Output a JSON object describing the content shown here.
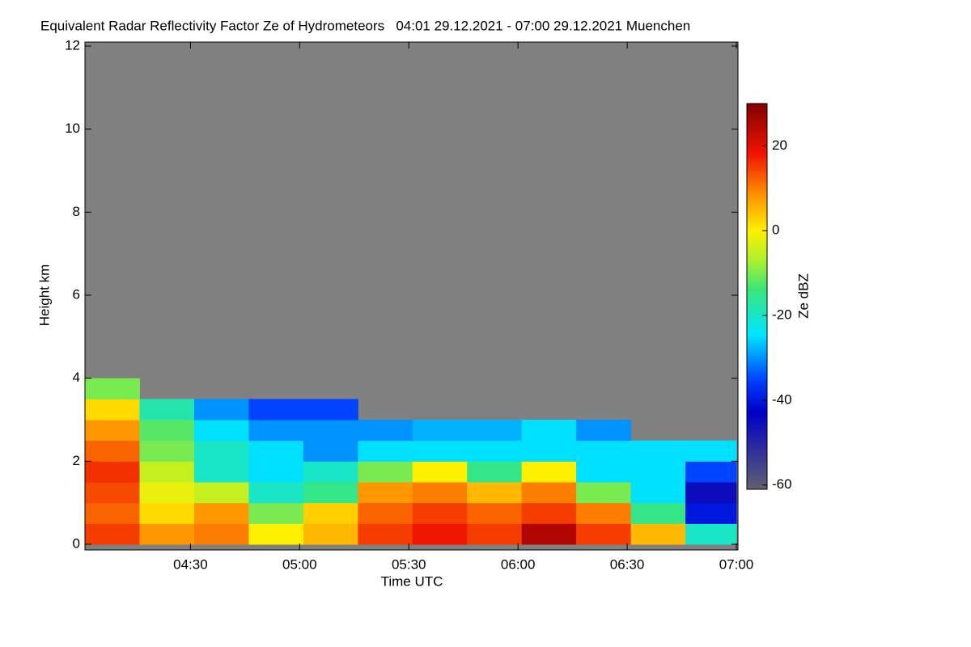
{
  "chart_data": {
    "type": "heatmap",
    "title": "Equivalent Radar Reflectivity Factor Ze of Hydrometeors   04:01 29.12.2021 - 07:00 29.12.2021 Muenchen",
    "xlabel": "Time UTC",
    "ylabel": "Height km",
    "zlabel": "Ze dBZ",
    "xlim": [
      "04:01",
      "07:00"
    ],
    "xticks": [
      "04:30",
      "05:00",
      "05:30",
      "06:00",
      "06:30",
      "07:00"
    ],
    "ylim": [
      0,
      12
    ],
    "yticks": [
      0,
      2,
      4,
      6,
      8,
      10,
      12
    ],
    "zlim": [
      -61,
      30
    ],
    "zticks": [
      -60,
      -40,
      -20,
      0,
      20
    ],
    "no_data_color": "#808080",
    "x_bins": [
      "04:01",
      "04:16",
      "04:31",
      "04:46",
      "05:01",
      "05:16",
      "05:31",
      "05:46",
      "06:01",
      "06:16",
      "06:31",
      "06:46",
      "07:00"
    ],
    "y_bins": [
      0,
      0.5,
      1,
      1.5,
      2,
      2.5,
      3,
      3.5,
      4
    ],
    "z": [
      [
        15,
        8,
        10,
        0,
        5,
        15,
        18,
        15,
        25,
        15,
        5,
        -20
      ],
      [
        12,
        2,
        8,
        -10,
        3,
        12,
        15,
        12,
        15,
        10,
        -15,
        -40
      ],
      [
        14,
        -2,
        -5,
        -20,
        -15,
        8,
        10,
        5,
        10,
        -10,
        -25,
        -45
      ],
      [
        16,
        -5,
        -20,
        -25,
        -20,
        -10,
        0,
        -15,
        0,
        -25,
        -25,
        -35
      ],
      [
        12,
        -10,
        -20,
        -25,
        -30,
        -25,
        -25,
        -25,
        -25,
        -25,
        -25,
        -25
      ],
      [
        8,
        -12,
        -25,
        -30,
        -30,
        -30,
        -28,
        -28,
        -25,
        -30,
        null,
        null
      ],
      [
        2,
        -18,
        -30,
        -35,
        -35,
        null,
        null,
        null,
        null,
        null,
        null,
        null
      ],
      [
        -10,
        null,
        null,
        null,
        null,
        null,
        null,
        null,
        null,
        null,
        null,
        null
      ]
    ]
  }
}
